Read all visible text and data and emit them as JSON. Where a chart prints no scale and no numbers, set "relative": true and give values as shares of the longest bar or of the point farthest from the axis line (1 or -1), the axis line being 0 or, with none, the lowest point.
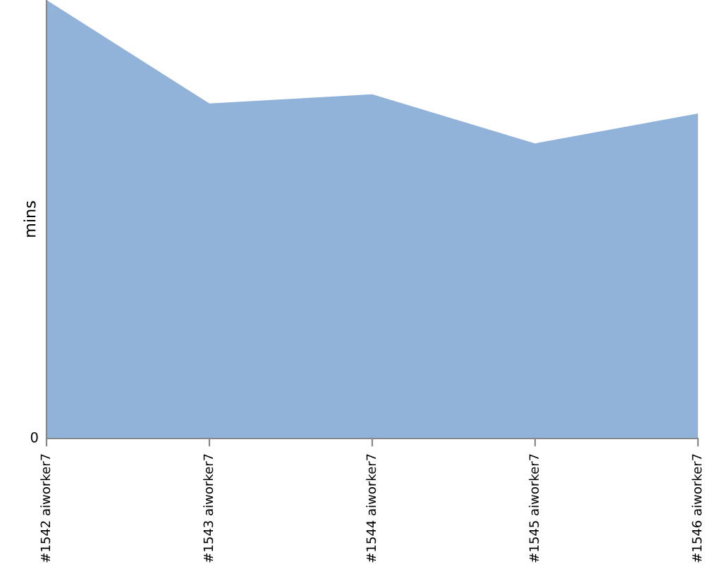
{
  "chart_data": {
    "type": "area",
    "relative": true,
    "ylabel": "mins",
    "categories": [
      "#1542 aiworker7",
      "#1543 aiworker7",
      "#1544 aiworker7",
      "#1545 aiworker7",
      "#1546 aiworker7"
    ],
    "series": [
      {
        "color": "#91b3da",
        "values": [
          1,
          0.764,
          0.785,
          0.673,
          0.741
        ]
      }
    ],
    "annotations": [
      "0"
    ],
    "grid": false,
    "legend": false
  }
}
